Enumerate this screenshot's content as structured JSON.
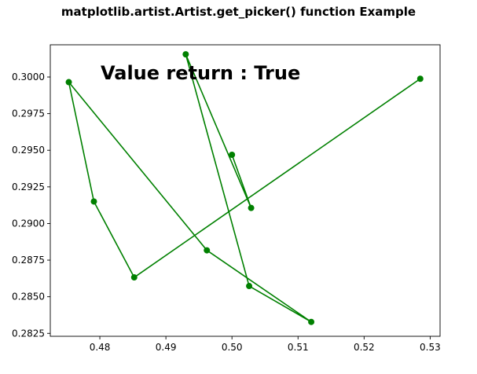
{
  "chart_data": {
    "type": "line",
    "title": "matplotlib.artist.Artist.get_picker() function Example",
    "xlabel": "",
    "ylabel": "",
    "xlim": [
      0.4725,
      0.5315
    ],
    "ylim": [
      0.2823,
      0.3022
    ],
    "x_ticks": [
      "0.48",
      "0.49",
      "0.50",
      "0.51",
      "0.52",
      "0.53"
    ],
    "y_ticks": [
      "0.2825",
      "0.2850",
      "0.2875",
      "0.2900",
      "0.2925",
      "0.2950",
      "0.2975",
      "0.3000"
    ],
    "grid": false,
    "annotation": "Value return : True",
    "series": [
      {
        "color": "#008000",
        "marker": "circle",
        "x": [
          0.5285,
          0.4852,
          0.4791,
          0.4753,
          0.4962,
          0.512,
          0.5026,
          0.493,
          0.5029,
          0.5
        ],
        "y": [
          0.29988,
          0.28632,
          0.2915,
          0.29965,
          0.28817,
          0.28328,
          0.28573,
          0.30155,
          0.29106,
          0.29469
        ]
      }
    ]
  }
}
